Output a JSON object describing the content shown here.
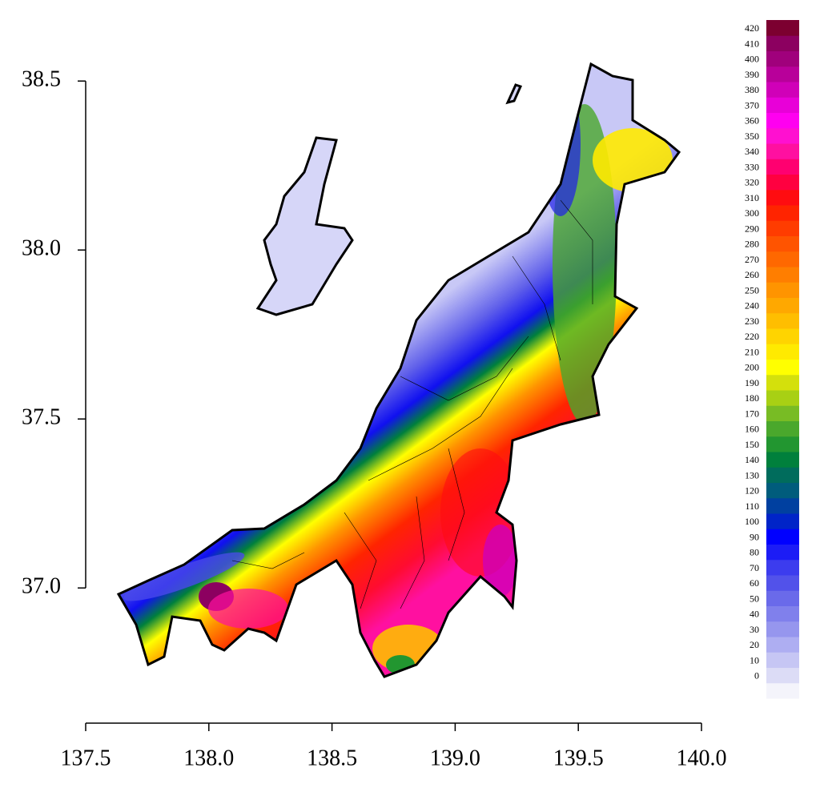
{
  "chart_data": {
    "type": "map",
    "xlim": [
      137.5,
      140.0
    ],
    "xticks": [
      137.5,
      {
        "value": 138,
        "label": "138.0"
      },
      138.5,
      {
        "value": 139,
        "label": "139.0"
      },
      139.5,
      {
        "value": 140,
        "label": "140.0"
      }
    ],
    "ylim": [
      36.6,
      38.6
    ],
    "yticks": [
      {
        "value": 37,
        "label": "37.0"
      },
      37.5,
      {
        "value": 38,
        "label": "38.0"
      },
      38.5
    ],
    "colorbar": {
      "levels": [
        0,
        10,
        20,
        30,
        40,
        50,
        60,
        70,
        80,
        90,
        100,
        110,
        120,
        130,
        140,
        150,
        160,
        170,
        180,
        190,
        200,
        210,
        220,
        230,
        240,
        250,
        260,
        270,
        280,
        290,
        300,
        310,
        320,
        330,
        340,
        350,
        360,
        370,
        380,
        390,
        400,
        410,
        420
      ],
      "colors": [
        "#f4f4fb",
        "#dcdcf6",
        "#c6c6f4",
        "#aeaef2",
        "#9696ee",
        "#8080ec",
        "#6a6aea",
        "#5252ea",
        "#3c3cee",
        "#1c1cf6",
        "#0000ff",
        "#0024c8",
        "#0040a0",
        "#005c7c",
        "#006c5c",
        "#00803c",
        "#229630",
        "#4aa82c",
        "#78bc24",
        "#a8d014",
        "#d4e00c",
        "#ffff00",
        "#ffea00",
        "#ffd400",
        "#ffbe00",
        "#ffa800",
        "#ff9400",
        "#ff7e00",
        "#ff6800",
        "#ff5400",
        "#ff3c00",
        "#ff2400",
        "#ff0c10",
        "#ff0040",
        "#ff0070",
        "#ff10a0",
        "#ff10d0",
        "#ff00f0",
        "#e800d8",
        "#d000b8",
        "#b8009a",
        "#a0007c",
        "#8c0060",
        "#7c0030"
      ]
    }
  }
}
